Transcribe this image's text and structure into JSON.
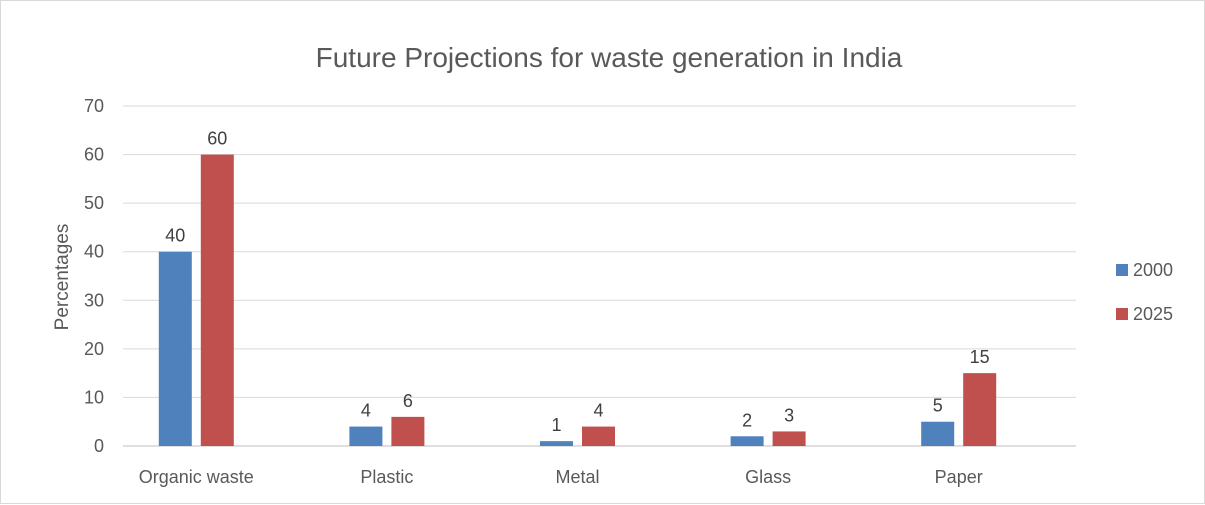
{
  "chart_data": {
    "type": "bar",
    "title": "Future Projections for waste generation in India",
    "xlabel": "",
    "ylabel": "Percentages",
    "categories": [
      "Organic waste",
      "Plastic",
      "Metal",
      "Glass",
      "Paper"
    ],
    "series": [
      {
        "name": "2000",
        "values": [
          40,
          4,
          1,
          2,
          5
        ],
        "color": "#4f81bd"
      },
      {
        "name": "2025",
        "values": [
          60,
          6,
          4,
          3,
          15
        ],
        "color": "#c0504d"
      }
    ],
    "ylim": [
      0,
      70
    ],
    "yticks": [
      "0",
      "10",
      "20",
      "30",
      "40",
      "50",
      "60",
      "70"
    ],
    "grid": true,
    "legend": "right",
    "data_labels": true
  }
}
